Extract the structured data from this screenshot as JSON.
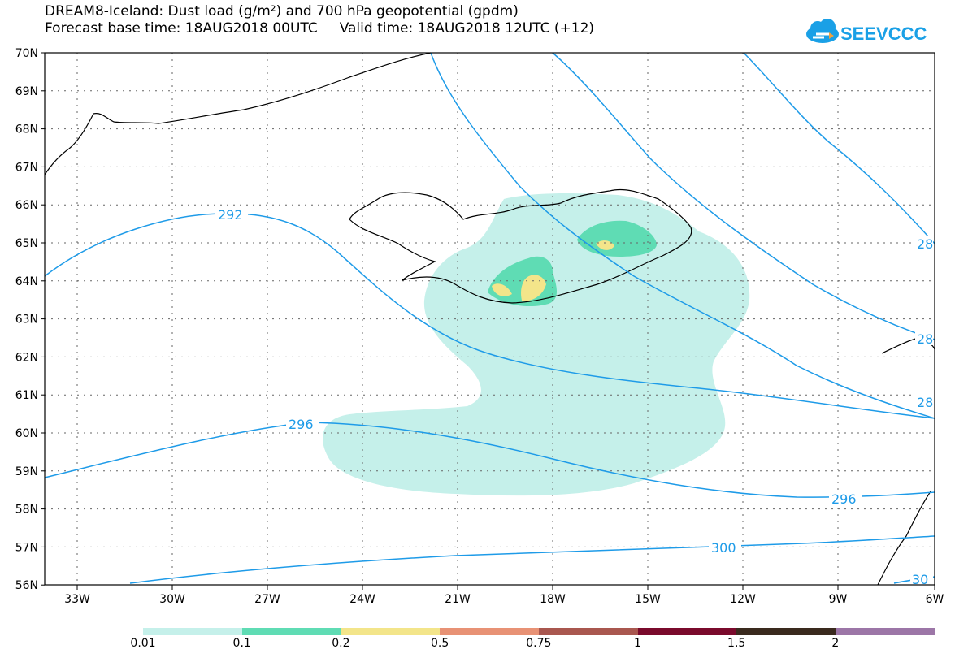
{
  "header": {
    "title_line1": "DREAM8-Iceland: Dust load (g/m²) and 700 hPa geopotential (gpdm)",
    "title_line2": "Forecast base time: 18AUG2018 00UTC     Valid time: 18AUG2018 12UTC (+12)"
  },
  "logo": {
    "text": "SEEVCCC",
    "icon": "cloud-logo-icon",
    "color": "#1aa0e6"
  },
  "axes": {
    "lon_ticks": [
      "33W",
      "30W",
      "27W",
      "24W",
      "21W",
      "18W",
      "15W",
      "12W",
      "9W",
      "6W"
    ],
    "lat_ticks": [
      "70N",
      "69N",
      "68N",
      "67N",
      "66N",
      "65N",
      "64N",
      "63N",
      "62N",
      "61N",
      "60N",
      "59N",
      "58N",
      "57N",
      "56N"
    ]
  },
  "contour_labels": {
    "c292": "292",
    "c296a": "296",
    "c296b": "296",
    "c300": "300",
    "c28a": "28",
    "c28b": "28",
    "c28c": "28",
    "c30": "30"
  },
  "colors": {
    "contour": "#1e9be8",
    "dust": [
      "#c5f0ea",
      "#5fdcb4",
      "#f3e58a",
      "#e89275",
      "#a9574f",
      "#7a0a2c",
      "#3a2a1e",
      "#9c76a7"
    ]
  },
  "legend": {
    "labels": [
      "0.01",
      "0.1",
      "0.2",
      "0.5",
      "0.75",
      "1",
      "1.5",
      "2"
    ]
  }
}
